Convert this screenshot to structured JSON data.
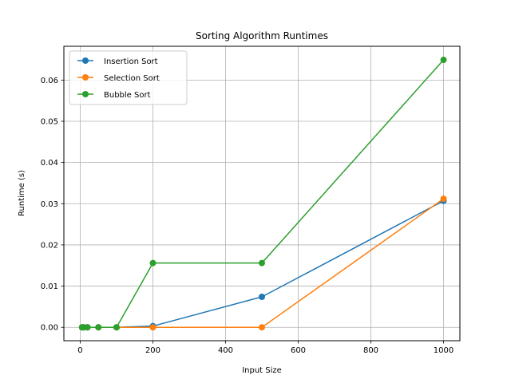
{
  "chart_data": {
    "type": "line",
    "title": "Sorting Algorithm Runtimes",
    "xlabel": "Input Size",
    "ylabel": "Runtime (s)",
    "xlim": [
      -45,
      1045
    ],
    "ylim": [
      -0.00325,
      0.0682
    ],
    "xticks": [
      0,
      200,
      400,
      600,
      800,
      1000
    ],
    "yticks": [
      0.0,
      0.01,
      0.02,
      0.03,
      0.04,
      0.05,
      0.06
    ],
    "ytick_labels": [
      "0.00",
      "0.01",
      "0.02",
      "0.03",
      "0.04",
      "0.05",
      "0.06"
    ],
    "grid": true,
    "legend_position": "top-left",
    "x": [
      5,
      10,
      20,
      50,
      100,
      200,
      500,
      1000
    ],
    "series": [
      {
        "name": "Insertion Sort",
        "color": "#1f77b4",
        "values": [
          0.0,
          0.0,
          0.0,
          0.0,
          0.0,
          0.0003,
          0.0074,
          0.0307
        ]
      },
      {
        "name": "Selection Sort",
        "color": "#ff7f0e",
        "values": [
          0.0,
          0.0,
          0.0,
          0.0,
          0.0,
          0.0,
          0.0,
          0.0312
        ]
      },
      {
        "name": "Bubble Sort",
        "color": "#2ca02c",
        "values": [
          0.0,
          0.0,
          0.0,
          0.0,
          0.0,
          0.0156,
          0.0156,
          0.0649
        ]
      }
    ]
  }
}
